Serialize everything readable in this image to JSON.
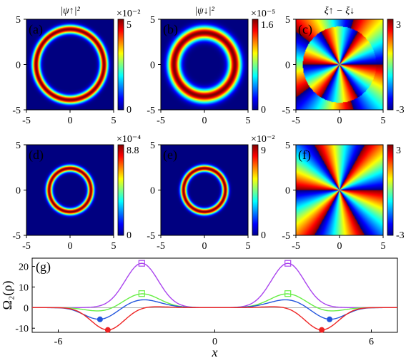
{
  "panels": [
    {
      "label": "(a)",
      "title": "|ψ↑|²",
      "colorbar": {
        "exponent": "×10⁻²",
        "max": "5",
        "min": "0"
      },
      "kind": "ring",
      "ring_center_radius": 3.9,
      "ring_width": 0.45
    },
    {
      "label": "(b)",
      "title": "|ψ↓|²",
      "colorbar": {
        "exponent": "×10⁻⁵",
        "max": "1.6",
        "min": "0"
      },
      "kind": "ring",
      "ring_center_radius": 3.5,
      "ring_width": 0.7
    },
    {
      "label": "(c)",
      "title": "ξ↑ − ξ↓",
      "colorbar": {
        "exponent": "",
        "max": "3",
        "min": "-3"
      },
      "kind": "phase",
      "disk_radius": 4.2
    },
    {
      "label": "(d)",
      "title": "",
      "colorbar": {
        "exponent": "×10⁻⁴",
        "max": "8.8",
        "min": "0"
      },
      "kind": "ring",
      "ring_center_radius": 2.4,
      "ring_width": 0.35
    },
    {
      "label": "(e)",
      "title": "",
      "colorbar": {
        "exponent": "×10⁻²",
        "max": "9",
        "min": "0"
      },
      "kind": "ring",
      "ring_center_radius": 2.4,
      "ring_width": 0.35
    },
    {
      "label": "(f)",
      "title": "",
      "colorbar": {
        "exponent": "",
        "max": "3",
        "min": "-3"
      },
      "kind": "phase",
      "disk_radius": null
    }
  ],
  "map_axes": {
    "xticks": [
      "-5",
      "0",
      "5"
    ],
    "yticks": [
      "5",
      "0",
      "-5"
    ],
    "range": [
      -5,
      5
    ]
  },
  "chart_data": {
    "type": "line",
    "panel_label": "(g)",
    "xlabel": "x",
    "ylabel": "Ω₂(ρ)",
    "xlim": [
      -7,
      7
    ],
    "ylim": [
      -12,
      24
    ],
    "xticks": [
      -6,
      0,
      6
    ],
    "xtick_labels": [
      "-6",
      "0",
      "6"
    ],
    "yticks": [
      -10,
      0,
      10,
      20
    ],
    "ytick_labels": [
      "-10",
      "0",
      "10",
      "20"
    ],
    "series": [
      {
        "color": "#aa44ee",
        "marker": "square",
        "peak": 21.5,
        "peak_x": 2.8,
        "dip": 0,
        "dip_x": 4.2,
        "width": 0.9
      },
      {
        "color": "#66ee44",
        "marker": "square",
        "peak": 6.8,
        "peak_x": 2.8,
        "dip": -2.0,
        "dip_x": 4.3,
        "width": 0.95
      },
      {
        "color": "#2255dd",
        "marker": "circle",
        "peak": 4.0,
        "peak_x": 2.8,
        "dip": -6.0,
        "dip_x": 4.4,
        "width": 1.0
      },
      {
        "color": "#ee2222",
        "marker": "circle",
        "peak": 0.8,
        "peak_x": 2.8,
        "dip": -11.0,
        "dip_x": 4.1,
        "width": 1.0
      }
    ]
  }
}
